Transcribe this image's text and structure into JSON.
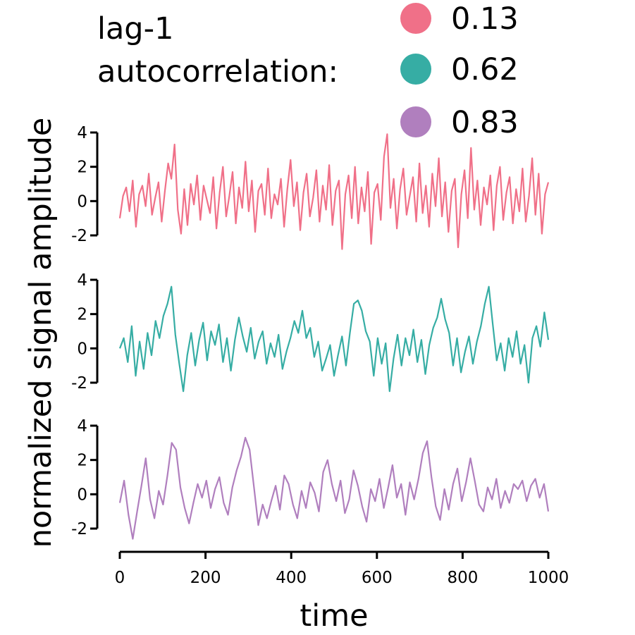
{
  "chart_data": {
    "type": "line",
    "ylabel": "normalized signal amplitude",
    "xlabel": "time",
    "legend": {
      "title_lines": [
        "lag-1",
        "autocorrelation:"
      ],
      "placement": "top",
      "entries": [
        {
          "label": "0.13",
          "color": "#f07088"
        },
        {
          "label": "0.62",
          "color": "#36ada4"
        },
        {
          "label": "0.83",
          "color": "#b07fbe"
        }
      ]
    },
    "x_axis": {
      "range": [
        0,
        1000
      ],
      "ticks": [
        0,
        200,
        400,
        600,
        800,
        1000
      ],
      "tick_labels": [
        "0",
        "200",
        "400",
        "600",
        "800",
        "1000"
      ]
    },
    "y_axis": {
      "range": [
        -2,
        4
      ],
      "ticks": [
        -2,
        0,
        2,
        4
      ],
      "tick_labels": [
        "-2",
        "0",
        "2",
        "4"
      ]
    },
    "grid": false,
    "series": [
      {
        "autocorrelation": 0.13,
        "color": "#f07088",
        "x_range": [
          0,
          1000
        ],
        "values": [
          -1.0,
          0.3,
          0.8,
          -0.6,
          1.2,
          -1.5,
          0.4,
          0.9,
          -0.3,
          1.6,
          -0.8,
          0.2,
          1.1,
          -1.2,
          0.6,
          2.2,
          1.3,
          3.3,
          -0.5,
          -1.9,
          0.7,
          -1.4,
          1.0,
          -0.2,
          1.5,
          -1.1,
          0.9,
          0.1,
          -0.7,
          1.4,
          -1.6,
          0.5,
          2.0,
          -0.9,
          0.3,
          1.7,
          -1.3,
          0.8,
          -0.4,
          2.3,
          -0.6,
          1.2,
          -1.8,
          0.6,
          1.0,
          -0.8,
          1.9,
          -1.0,
          0.4,
          -0.2,
          1.3,
          -1.5,
          0.7,
          2.4,
          -0.3,
          1.1,
          -1.7,
          0.5,
          1.6,
          -0.9,
          0.2,
          1.8,
          -1.2,
          0.9,
          -0.5,
          2.1,
          -1.4,
          0.6,
          1.2,
          -2.8,
          0.4,
          1.5,
          -1.0,
          2.0,
          -1.3,
          0.8,
          -0.6,
          1.7,
          -2.5,
          0.5,
          1.0,
          -1.1,
          2.6,
          3.9,
          -0.4,
          1.3,
          -1.6,
          0.7,
          1.9,
          -0.8,
          0.3,
          1.4,
          -1.2,
          2.2,
          -0.7,
          0.9,
          -1.5,
          1.6,
          -0.3,
          2.5,
          -0.9,
          1.1,
          -1.8,
          0.6,
          1.3,
          -2.7,
          0.4,
          1.8,
          -1.0,
          3.1,
          -0.5,
          1.2,
          -1.4,
          0.8,
          -0.2,
          1.5,
          -1.7,
          0.9,
          2.0,
          -1.1,
          0.5,
          1.4,
          -1.3,
          0.7,
          -0.6,
          1.9,
          -1.2,
          0.3,
          2.5,
          -0.8,
          1.6,
          -1.9,
          0.4,
          1.1
        ]
      },
      {
        "autocorrelation": 0.62,
        "color": "#36ada4",
        "x_range": [
          0,
          1000
        ],
        "values": [
          0.0,
          0.6,
          -0.8,
          1.3,
          -1.6,
          0.4,
          -1.2,
          0.9,
          -0.4,
          1.6,
          0.6,
          1.9,
          2.6,
          3.6,
          0.8,
          -0.9,
          -2.5,
          -0.4,
          0.9,
          -1.0,
          0.5,
          1.5,
          -0.7,
          1.0,
          0.2,
          1.4,
          -0.8,
          0.6,
          -1.3,
          0.5,
          1.8,
          0.7,
          -0.2,
          1.2,
          -0.6,
          0.4,
          1.0,
          -0.9,
          0.3,
          -0.5,
          0.8,
          -1.2,
          -0.2,
          0.6,
          1.6,
          0.9,
          2.2,
          0.6,
          1.2,
          -0.5,
          0.4,
          -1.3,
          -0.6,
          0.2,
          -1.6,
          -0.4,
          0.7,
          -1.0,
          0.9,
          2.6,
          2.8,
          2.2,
          1.0,
          0.4,
          -1.6,
          0.6,
          -0.9,
          0.3,
          -2.5,
          -0.6,
          0.8,
          -1.0,
          0.6,
          -0.4,
          1.1,
          -0.8,
          0.5,
          -1.5,
          0.2,
          1.2,
          1.8,
          2.9,
          1.7,
          0.9,
          -1.0,
          0.6,
          -1.4,
          -0.2,
          0.7,
          -0.9,
          0.4,
          1.3,
          2.6,
          3.6,
          1.4,
          -0.7,
          0.3,
          -1.3,
          0.6,
          -0.5,
          1.0,
          -0.9,
          0.2,
          -2.0,
          0.6,
          1.3,
          0.1,
          2.1,
          0.5
        ]
      },
      {
        "autocorrelation": 0.83,
        "color": "#b07fbe",
        "x_range": [
          0,
          1000
        ],
        "values": [
          -0.5,
          0.8,
          -1.2,
          -2.6,
          -1.0,
          0.5,
          2.1,
          -0.3,
          -1.4,
          0.2,
          -0.6,
          1.1,
          3.0,
          2.6,
          0.4,
          -0.8,
          -1.7,
          -0.5,
          0.6,
          -0.2,
          0.8,
          -0.8,
          0.3,
          1.0,
          -0.5,
          -1.2,
          0.4,
          1.4,
          2.2,
          3.3,
          2.6,
          0.4,
          -1.8,
          -0.6,
          -1.4,
          -0.4,
          0.5,
          -0.9,
          1.1,
          0.6,
          -0.6,
          -1.4,
          0.2,
          -0.8,
          0.7,
          0.1,
          -1.0,
          1.3,
          2.0,
          0.6,
          -0.4,
          0.8,
          -1.1,
          -0.3,
          1.4,
          0.5,
          -0.7,
          -1.6,
          0.3,
          -0.4,
          0.9,
          -0.8,
          0.4,
          1.7,
          -0.2,
          0.6,
          -1.2,
          0.7,
          -0.3,
          0.9,
          2.4,
          3.1,
          1.0,
          -0.7,
          -1.5,
          0.3,
          -0.9,
          0.6,
          1.5,
          -0.4,
          0.7,
          2.1,
          0.8,
          -0.6,
          -1.0,
          0.4,
          -0.3,
          0.9,
          -0.8,
          0.2,
          -0.5,
          0.6,
          0.3,
          0.8,
          -0.4,
          0.5,
          0.9,
          -0.2,
          0.6,
          -1.0
        ]
      }
    ]
  }
}
